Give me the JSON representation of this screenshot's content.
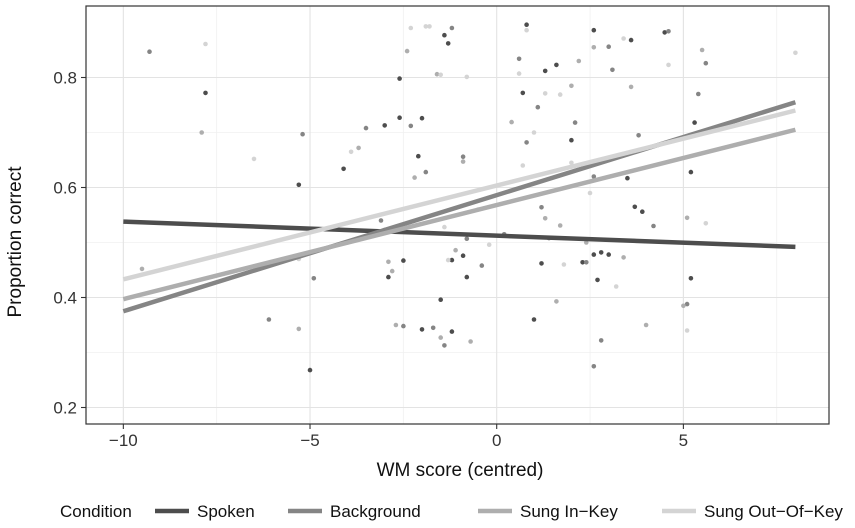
{
  "chart_data": {
    "type": "scatter",
    "xlabel": "WM score (centred)",
    "ylabel": "Proportion correct",
    "xlim": [
      -11.0,
      8.9
    ],
    "ylim": [
      0.17,
      0.93
    ],
    "x_ticks": [
      -10,
      -5,
      0,
      5
    ],
    "x_tick_labels": [
      "−10",
      "−5",
      "0",
      "5"
    ],
    "y_ticks": [
      0.2,
      0.4,
      0.6,
      0.8
    ],
    "y_tick_labels": [
      "0.2",
      "0.4",
      "0.6",
      "0.8"
    ],
    "grid": true,
    "legend_position": "bottom",
    "legend_title": "Condition",
    "series": [
      {
        "name": "Spoken",
        "color": "#4d4d4d",
        "fit": {
          "x": [
            -10,
            8
          ],
          "y": [
            0.538,
            0.492
          ]
        },
        "points": [
          [
            -7.8,
            0.772
          ],
          [
            -5.3,
            0.605
          ],
          [
            -5.0,
            0.268
          ],
          [
            -4.1,
            0.634
          ],
          [
            -3.0,
            0.713
          ],
          [
            -2.6,
            0.727
          ],
          [
            -2.6,
            0.798
          ],
          [
            -2.0,
            0.726
          ],
          [
            -2.1,
            0.657
          ],
          [
            -2.5,
            0.467
          ],
          [
            -2.9,
            0.437
          ],
          [
            -2.0,
            0.342
          ],
          [
            -1.4,
            0.877
          ],
          [
            -1.3,
            0.862
          ],
          [
            -1.2,
            0.468
          ],
          [
            -0.9,
            0.476
          ],
          [
            -0.8,
            0.437
          ],
          [
            -1.5,
            0.396
          ],
          [
            -1.2,
            0.338
          ],
          [
            0.8,
            0.896
          ],
          [
            0.7,
            0.772
          ],
          [
            1.3,
            0.812
          ],
          [
            1.6,
            0.823
          ],
          [
            1.0,
            0.36
          ],
          [
            1.2,
            0.462
          ],
          [
            2.0,
            0.686
          ],
          [
            2.3,
            0.464
          ],
          [
            2.6,
            0.886
          ],
          [
            2.8,
            0.482
          ],
          [
            3.0,
            0.478
          ],
          [
            3.6,
            0.868
          ],
          [
            3.5,
            0.617
          ],
          [
            3.7,
            0.565
          ],
          [
            3.9,
            0.556
          ],
          [
            4.5,
            0.882
          ],
          [
            5.2,
            0.628
          ],
          [
            5.3,
            0.718
          ],
          [
            5.2,
            0.435
          ],
          [
            2.6,
            0.478
          ],
          [
            2.7,
            0.432
          ]
        ]
      },
      {
        "name": "Background",
        "color": "#858585",
        "fit": {
          "x": [
            -10,
            8
          ],
          "y": [
            0.375,
            0.755
          ]
        },
        "points": [
          [
            -9.3,
            0.847
          ],
          [
            -6.1,
            0.36
          ],
          [
            -5.2,
            0.697
          ],
          [
            -4.9,
            0.435
          ],
          [
            -3.5,
            0.708
          ],
          [
            -3.1,
            0.54
          ],
          [
            -2.3,
            0.712
          ],
          [
            -1.9,
            0.628
          ],
          [
            -1.7,
            0.345
          ],
          [
            -1.4,
            0.313
          ],
          [
            -1.2,
            0.89
          ],
          [
            -0.9,
            0.656
          ],
          [
            -0.8,
            0.507
          ],
          [
            -0.4,
            0.458
          ],
          [
            0.6,
            0.834
          ],
          [
            0.8,
            0.682
          ],
          [
            1.1,
            0.746
          ],
          [
            1.2,
            0.564
          ],
          [
            1.4,
            0.508
          ],
          [
            2.1,
            0.718
          ],
          [
            2.4,
            0.464
          ],
          [
            2.6,
            0.275
          ],
          [
            2.8,
            0.322
          ],
          [
            3.0,
            0.856
          ],
          [
            3.1,
            0.814
          ],
          [
            3.8,
            0.695
          ],
          [
            4.2,
            0.53
          ],
          [
            4.6,
            0.884
          ],
          [
            5.1,
            0.388
          ],
          [
            5.4,
            0.77
          ],
          [
            5.6,
            0.826
          ],
          [
            2.6,
            0.62
          ],
          [
            0.2,
            0.515
          ],
          [
            -2.5,
            0.348
          ]
        ]
      },
      {
        "name": "Sung In−Key",
        "color": "#aeaeae",
        "fit": {
          "x": [
            -10,
            8
          ],
          "y": [
            0.397,
            0.705
          ]
        },
        "points": [
          [
            -9.5,
            0.452
          ],
          [
            -7.9,
            0.7
          ],
          [
            -5.3,
            0.343
          ],
          [
            -3.7,
            0.672
          ],
          [
            -3.0,
            0.523
          ],
          [
            -2.9,
            0.465
          ],
          [
            -2.8,
            0.448
          ],
          [
            -2.4,
            0.848
          ],
          [
            -2.2,
            0.618
          ],
          [
            -1.6,
            0.806
          ],
          [
            -1.5,
            0.327
          ],
          [
            -1.1,
            0.486
          ],
          [
            -0.9,
            0.647
          ],
          [
            0.4,
            0.719
          ],
          [
            1.3,
            0.544
          ],
          [
            1.6,
            0.393
          ],
          [
            1.7,
            0.531
          ],
          [
            2.0,
            0.785
          ],
          [
            2.4,
            0.5
          ],
          [
            2.6,
            0.855
          ],
          [
            3.4,
            0.473
          ],
          [
            3.6,
            0.783
          ],
          [
            5.0,
            0.385
          ],
          [
            5.1,
            0.545
          ],
          [
            5.5,
            0.85
          ],
          [
            -2.7,
            0.35
          ],
          [
            -0.7,
            0.32
          ],
          [
            2.2,
            0.83
          ],
          [
            -4.0,
            0.5
          ],
          [
            4.0,
            0.35
          ]
        ]
      },
      {
        "name": "Sung Out−Of−Key",
        "color": "#d4d4d4",
        "fit": {
          "x": [
            -10,
            8
          ],
          "y": [
            0.433,
            0.74
          ]
        },
        "points": [
          [
            -7.8,
            0.861
          ],
          [
            -6.5,
            0.652
          ],
          [
            -3.9,
            0.665
          ],
          [
            -2.3,
            0.89
          ],
          [
            -1.9,
            0.893
          ],
          [
            -1.8,
            0.893
          ],
          [
            -1.5,
            0.805
          ],
          [
            -1.4,
            0.528
          ],
          [
            -1.3,
            0.468
          ],
          [
            -0.8,
            0.801
          ],
          [
            -0.2,
            0.496
          ],
          [
            0.6,
            0.807
          ],
          [
            0.7,
            0.64
          ],
          [
            0.8,
            0.886
          ],
          [
            1.3,
            0.771
          ],
          [
            1.7,
            0.769
          ],
          [
            2.0,
            0.645
          ],
          [
            2.5,
            0.59
          ],
          [
            3.4,
            0.871
          ],
          [
            4.6,
            0.823
          ],
          [
            5.1,
            0.34
          ],
          [
            5.6,
            0.535
          ],
          [
            8.0,
            0.845
          ],
          [
            1.8,
            0.46
          ],
          [
            -0.5,
            0.56
          ],
          [
            3.2,
            0.42
          ],
          [
            -5.3,
            0.47
          ],
          [
            1.0,
            0.7
          ]
        ]
      }
    ]
  }
}
